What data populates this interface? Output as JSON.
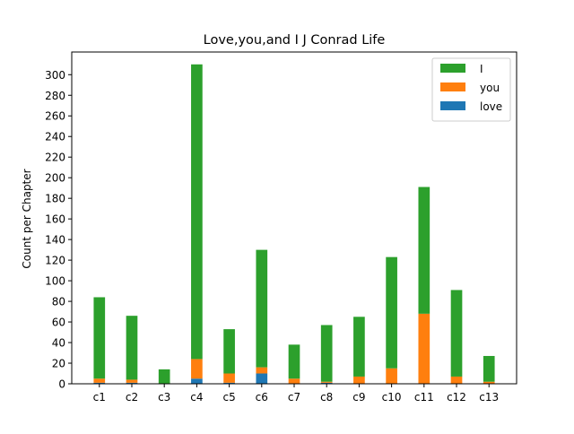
{
  "chart_data": {
    "type": "bar",
    "stacked": true,
    "title": "Love,you,and I J Conrad Life",
    "xlabel": "",
    "ylabel": "Count per Chapter",
    "categories": [
      "c1",
      "c2",
      "c3",
      "c4",
      "c5",
      "c6",
      "c7",
      "c8",
      "c9",
      "c10",
      "c11",
      "c12",
      "c13"
    ],
    "series": [
      {
        "name": "love",
        "color": "#1f77b4",
        "values": [
          1,
          1,
          0,
          5,
          1,
          10,
          0,
          1,
          0,
          0,
          0,
          0,
          0
        ]
      },
      {
        "name": "you",
        "color": "#ff7f0e",
        "values": [
          4,
          3,
          0,
          19,
          9,
          6,
          5,
          1,
          7,
          15,
          68,
          7,
          2
        ]
      },
      {
        "name": "I",
        "color": "#2ca02c",
        "values": [
          79,
          62,
          14,
          286,
          43,
          114,
          33,
          55,
          58,
          108,
          123,
          84,
          25
        ]
      }
    ],
    "ylim": [
      0,
      322
    ],
    "yticks": [
      0,
      20,
      40,
      60,
      80,
      100,
      120,
      140,
      160,
      180,
      200,
      220,
      240,
      260,
      280,
      300
    ],
    "legend": {
      "position": "top-right",
      "order": [
        "I",
        "you",
        "love"
      ]
    },
    "grid": false
  }
}
